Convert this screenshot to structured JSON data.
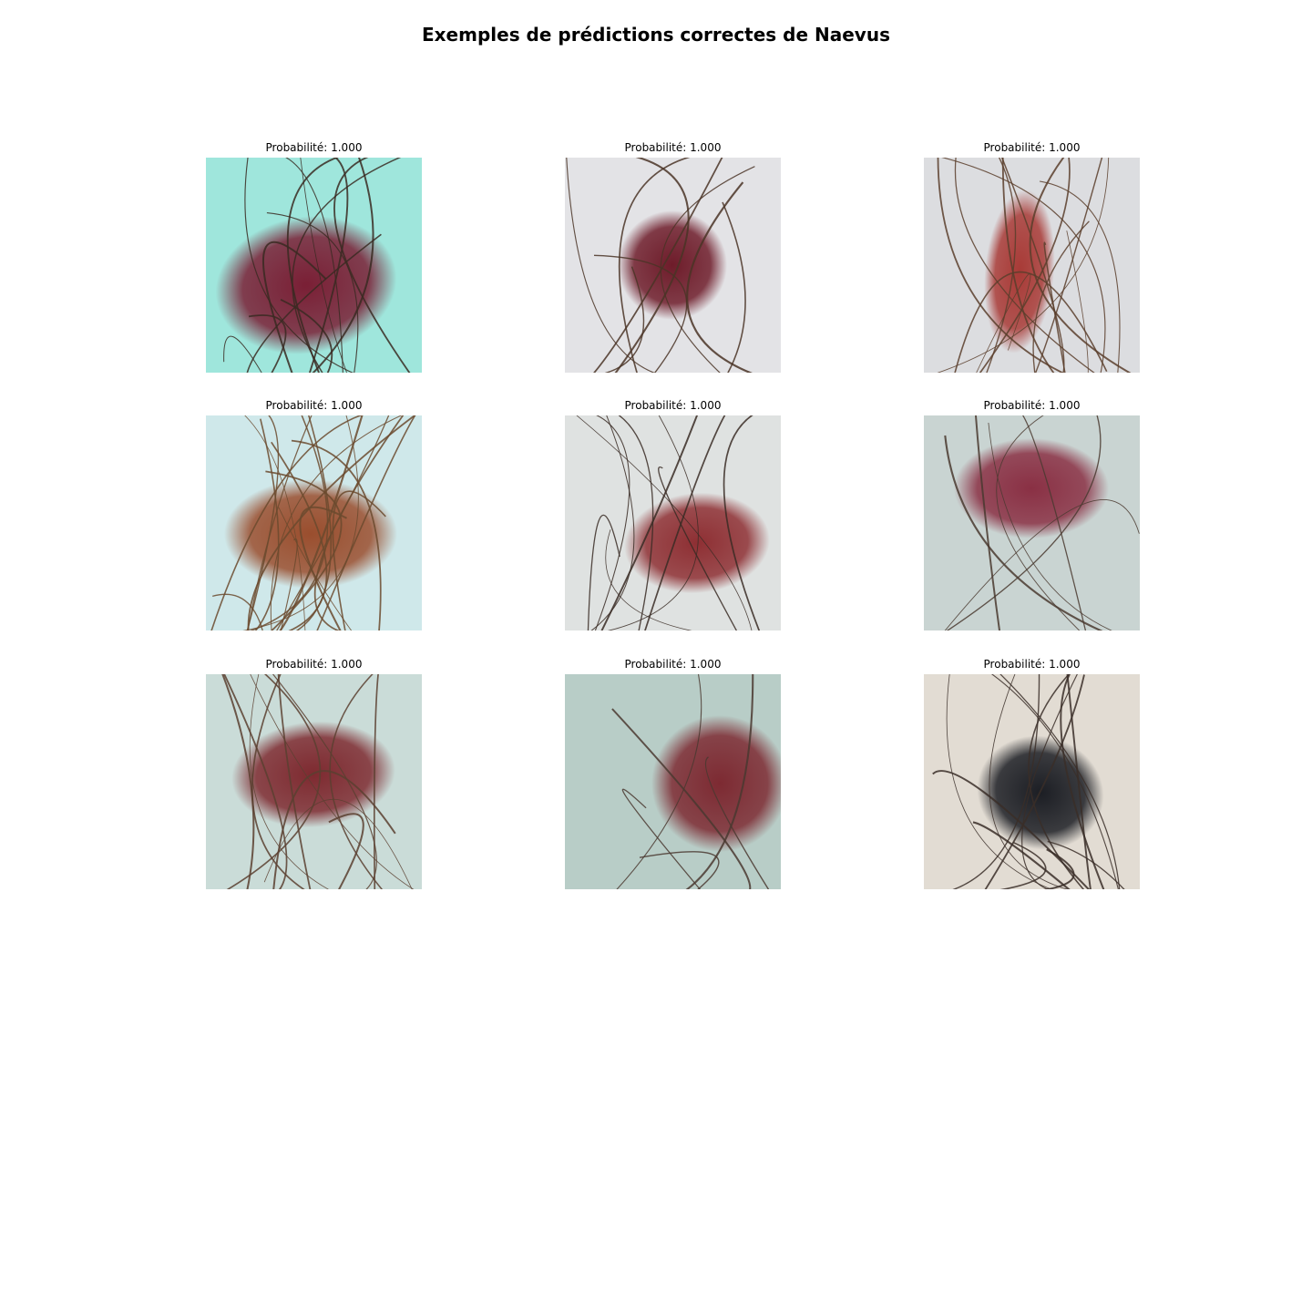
{
  "figure": {
    "title": "Exemples de prédictions correctes de Naevus"
  },
  "panels": [
    {
      "caption": "Probabilité: 1.000",
      "probability": 1.0,
      "skin": "#9fe6dc",
      "lesion": "#7a1f35",
      "variant": "large-diffuse-teal"
    },
    {
      "caption": "Probabilité: 1.000",
      "probability": 1.0,
      "skin": "#e3e3e6",
      "lesion": "#6e1c2a",
      "variant": "compact-round"
    },
    {
      "caption": "Probabilité: 1.000",
      "probability": 1.0,
      "skin": "#dcdde0",
      "lesion": "#a83a36",
      "variant": "vertical-light"
    },
    {
      "caption": "Probabilité: 1.000",
      "probability": 1.0,
      "skin": "#cfe8ea",
      "lesion": "#9a4e2e",
      "variant": "brown-hairy"
    },
    {
      "caption": "Probabilité: 1.000",
      "probability": 1.0,
      "skin": "#dfe2e1",
      "lesion": "#8e2f33",
      "variant": "offset-right"
    },
    {
      "caption": "Probabilité: 1.000",
      "probability": 1.0,
      "skin": "#c9d4d2",
      "lesion": "#8a3044",
      "variant": "faint-center"
    },
    {
      "caption": "Probabilité: 1.000",
      "probability": 1.0,
      "skin": "#cadcd8",
      "lesion": "#7e2a30",
      "variant": "oval-center"
    },
    {
      "caption": "Probabilité: 1.000",
      "probability": 1.0,
      "skin": "#b8cdc7",
      "lesion": "#7d2a32",
      "variant": "right-edge"
    },
    {
      "caption": "Probabilité: 1.000",
      "probability": 1.0,
      "skin": "#e2dcd3",
      "lesion": "#1c1e24",
      "variant": "dark-black"
    }
  ]
}
